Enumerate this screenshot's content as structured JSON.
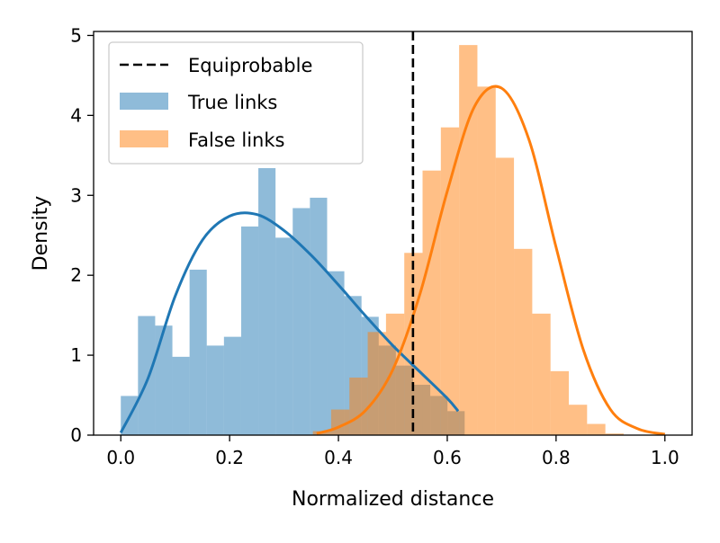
{
  "chart_data": {
    "type": "bar",
    "xlabel": "Normalized distance",
    "ylabel": "Density",
    "xlim": [
      -0.05,
      1.05
    ],
    "ylim": [
      0,
      5.05
    ],
    "x_ticks": [
      "0.0",
      "0.2",
      "0.4",
      "0.6",
      "0.8",
      "1.0"
    ],
    "y_ticks": [
      "0",
      "1",
      "2",
      "3",
      "4",
      "5"
    ],
    "legend_position": "top-left",
    "threshold": {
      "label": "Equiprobable",
      "x": 0.537,
      "color": "#000000"
    },
    "series": [
      {
        "name": "True links",
        "kind": "histogram",
        "color": "#1f77b4",
        "bin_start": 0.0,
        "bin_width": 0.0316,
        "values": [
          0.49,
          1.49,
          1.37,
          0.98,
          2.07,
          1.12,
          1.23,
          2.61,
          3.34,
          2.47,
          2.84,
          2.97,
          2.05,
          1.74,
          1.48,
          1.12,
          0.87,
          0.63,
          0.49,
          0.3
        ],
        "fit_curve": {
          "x": [
            0.0,
            0.05,
            0.1,
            0.15,
            0.2,
            0.25,
            0.3,
            0.35,
            0.4,
            0.45,
            0.5,
            0.55,
            0.6,
            0.62
          ],
          "y": [
            0.03,
            0.71,
            1.74,
            2.44,
            2.74,
            2.76,
            2.56,
            2.25,
            1.88,
            1.49,
            1.12,
            0.79,
            0.46,
            0.3
          ]
        }
      },
      {
        "name": "False links",
        "kind": "histogram",
        "color": "#ff7f0e",
        "bin_start": 0.353,
        "bin_width": 0.0336,
        "values": [
          0.05,
          0.32,
          0.72,
          1.29,
          1.52,
          2.28,
          3.31,
          3.85,
          4.88,
          4.36,
          3.47,
          2.33,
          1.52,
          0.8,
          0.38,
          0.14,
          0.02,
          0.0
        ],
        "fit_curve": {
          "x": [
            0.36,
            0.4,
            0.45,
            0.5,
            0.55,
            0.6,
            0.65,
            0.7,
            0.75,
            0.8,
            0.85,
            0.9,
            0.95,
            1.0
          ],
          "y": [
            0.02,
            0.1,
            0.31,
            0.82,
            1.77,
            3.05,
            4.11,
            4.34,
            3.7,
            2.35,
            1.07,
            0.32,
            0.08,
            0.01
          ]
        }
      }
    ]
  }
}
